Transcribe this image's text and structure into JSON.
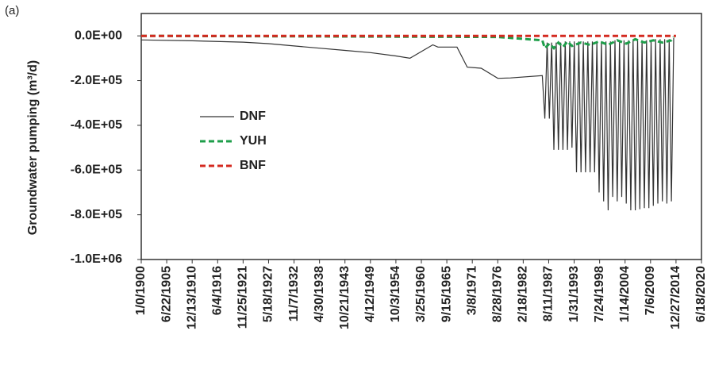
{
  "chart_data": {
    "type": "line",
    "panel_label": "(a)",
    "y_label": "Groundwater pumping (m³/d)",
    "xlim": [
      0,
      44000
    ],
    "ylim": [
      -1000000,
      100000
    ],
    "xticks": [
      {
        "value": 0,
        "label": "1/0/1900"
      },
      {
        "value": 2000,
        "label": "6/22/1905"
      },
      {
        "value": 4000,
        "label": "12/13/1910"
      },
      {
        "value": 6000,
        "label": "6/4/1916"
      },
      {
        "value": 8000,
        "label": "11/25/1921"
      },
      {
        "value": 10000,
        "label": "5/18/1927"
      },
      {
        "value": 12000,
        "label": "11/7/1932"
      },
      {
        "value": 14000,
        "label": "4/30/1938"
      },
      {
        "value": 16000,
        "label": "10/21/1943"
      },
      {
        "value": 18000,
        "label": "4/12/1949"
      },
      {
        "value": 20000,
        "label": "10/3/1954"
      },
      {
        "value": 22000,
        "label": "3/25/1960"
      },
      {
        "value": 24000,
        "label": "9/15/1965"
      },
      {
        "value": 26000,
        "label": "3/8/1971"
      },
      {
        "value": 28000,
        "label": "8/28/1976"
      },
      {
        "value": 30000,
        "label": "2/18/1982"
      },
      {
        "value": 32000,
        "label": "8/11/1987"
      },
      {
        "value": 34000,
        "label": "1/31/1993"
      },
      {
        "value": 36000,
        "label": "7/24/1998"
      },
      {
        "value": 38000,
        "label": "1/14/2004"
      },
      {
        "value": 40000,
        "label": "7/6/2009"
      },
      {
        "value": 42000,
        "label": "12/27/2014"
      },
      {
        "value": 44000,
        "label": "6/18/2020"
      }
    ],
    "yticks": [
      {
        "value": 0,
        "label": "0.0E+00"
      },
      {
        "value": -200000,
        "label": "-2.0E+05"
      },
      {
        "value": -400000,
        "label": "-4.0E+05"
      },
      {
        "value": -600000,
        "label": "-6.0E+05"
      },
      {
        "value": -800000,
        "label": "-8.0E+05"
      },
      {
        "value": -1000000,
        "label": "-1.0E+06"
      }
    ],
    "series": [
      {
        "name": "DNF",
        "color": "#333333",
        "dash": "solid",
        "x": [
          0,
          4000,
          8000,
          10000,
          12000,
          14000,
          16000,
          18000,
          20000,
          21100,
          22900,
          23300,
          24800,
          25600,
          26700,
          28000,
          29000,
          31500,
          31700,
          31880,
          32055,
          32235,
          32410,
          32590,
          32765,
          32945,
          33120,
          33300,
          33475,
          33655,
          33830,
          34010,
          34185,
          34365,
          34540,
          34720,
          34895,
          35075,
          35250,
          35430,
          35605,
          35785,
          35960,
          36140,
          36315,
          36495,
          36670,
          36850,
          37025,
          37205,
          37380,
          37560,
          37735,
          37915,
          38090,
          38270,
          38445,
          38625,
          38800,
          38980,
          39155,
          39335,
          39510,
          39690,
          39865,
          40045,
          40220,
          40400,
          40575,
          40755,
          40930,
          41110,
          41285,
          41465,
          41640,
          41820
        ],
        "values": [
          -18000,
          -22000,
          -28000,
          -35000,
          -45000,
          -55000,
          -65000,
          -75000,
          -90000,
          -100000,
          -40000,
          -50000,
          -50000,
          -140000,
          -145000,
          -190000,
          -188000,
          -178000,
          -370000,
          -30000,
          -370000,
          -30000,
          -510000,
          -30000,
          -510000,
          -30000,
          -510000,
          -25000,
          -510000,
          -25000,
          -500000,
          -25000,
          -610000,
          -25000,
          -610000,
          -25000,
          -610000,
          -25000,
          -610000,
          -25000,
          -610000,
          -25000,
          -700000,
          -25000,
          -740000,
          -25000,
          -780000,
          -25000,
          -720000,
          -20000,
          -740000,
          -20000,
          -720000,
          -20000,
          -750000,
          -20000,
          -780000,
          -20000,
          -780000,
          -20000,
          -775000,
          -20000,
          -770000,
          -20000,
          -770000,
          -20000,
          -760000,
          -15000,
          -750000,
          -15000,
          -740000,
          -15000,
          -750000,
          -15000,
          -740000,
          -10000
        ]
      },
      {
        "name": "YUH",
        "color": "#1e9e4a",
        "dash": "dashed",
        "x": [
          0,
          28000,
          31500,
          31700,
          32055,
          32410,
          32765,
          33120,
          33475,
          33830,
          34540,
          35250,
          35960,
          36670,
          37380,
          38090,
          38800,
          39510,
          40220,
          40930,
          41640,
          41820
        ],
        "values": [
          0,
          -5000,
          -20000,
          -55000,
          -35000,
          -55000,
          -30000,
          -50000,
          -25000,
          -45000,
          -30000,
          -40000,
          -25000,
          -40000,
          -20000,
          -35000,
          -15000,
          -30000,
          -20000,
          -30000,
          -20000,
          -5000
        ]
      },
      {
        "name": "BNF",
        "color": "#d42a20",
        "dash": "dashed",
        "x": [
          0,
          42000
        ],
        "values": [
          0,
          0
        ]
      }
    ]
  }
}
